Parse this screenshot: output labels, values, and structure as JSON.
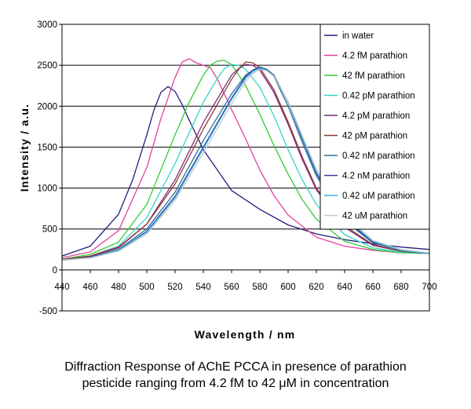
{
  "chart_data": {
    "type": "line",
    "title": "",
    "xlabel": "Wavelength / nm",
    "ylabel": "Intensity / a.u.",
    "xlim": [
      440,
      700
    ],
    "ylim": [
      -500,
      3000
    ],
    "xticks": [
      "440",
      "460",
      "480",
      "500",
      "520",
      "540",
      "560",
      "580",
      "600",
      "620",
      "640",
      "660",
      "680",
      "700"
    ],
    "yticks": [
      "-500",
      "0",
      "500",
      "1000",
      "1500",
      "2000",
      "2500",
      "3000"
    ],
    "grid": "horizontal",
    "legend_position": "top-right",
    "series": [
      {
        "name": "in water",
        "color": "#1f1f7a",
        "x": [
          440,
          460,
          480,
          490,
          500,
          505,
          510,
          515,
          520,
          525,
          530,
          540,
          560,
          580,
          600,
          620,
          640,
          660,
          680,
          700
        ],
        "y": [
          170,
          290,
          680,
          1100,
          1650,
          1950,
          2170,
          2240,
          2180,
          2020,
          1830,
          1470,
          970,
          740,
          550,
          440,
          370,
          320,
          280,
          250
        ]
      },
      {
        "name": "4.2 fM parathion",
        "color": "#e0429c",
        "x": [
          440,
          460,
          480,
          500,
          510,
          520,
          525,
          530,
          535,
          540,
          545,
          550,
          560,
          570,
          580,
          590,
          600,
          620,
          640,
          660,
          680,
          700
        ],
        "y": [
          150,
          220,
          480,
          1250,
          1850,
          2350,
          2540,
          2580,
          2530,
          2500,
          2470,
          2330,
          1960,
          1600,
          1220,
          910,
          670,
          400,
          290,
          240,
          210,
          200
        ]
      },
      {
        "name": "42 fM parathion",
        "color": "#33cc33",
        "x": [
          440,
          460,
          480,
          500,
          520,
          530,
          540,
          545,
          550,
          555,
          560,
          570,
          580,
          590,
          600,
          610,
          620,
          640,
          660,
          680,
          700
        ],
        "y": [
          130,
          190,
          340,
          800,
          1650,
          2050,
          2380,
          2500,
          2550,
          2560,
          2510,
          2250,
          1900,
          1520,
          1170,
          860,
          620,
          350,
          250,
          210,
          200
        ]
      },
      {
        "name": "0.42 pM parathion",
        "color": "#33d6c8",
        "x": [
          440,
          460,
          480,
          500,
          520,
          540,
          550,
          555,
          560,
          565,
          570,
          580,
          590,
          600,
          610,
          620,
          640,
          660,
          680,
          700
        ],
        "y": [
          120,
          170,
          290,
          640,
          1300,
          2050,
          2340,
          2460,
          2510,
          2500,
          2450,
          2230,
          1880,
          1470,
          1100,
          800,
          430,
          270,
          220,
          200
        ]
      },
      {
        "name": "4.2 pM parathion",
        "color": "#7a2a7a",
        "x": [
          440,
          460,
          480,
          500,
          520,
          540,
          560,
          565,
          570,
          575,
          580,
          590,
          600,
          610,
          620,
          640,
          660,
          680,
          700
        ],
        "y": [
          120,
          160,
          270,
          560,
          1100,
          1800,
          2380,
          2460,
          2510,
          2500,
          2440,
          2170,
          1780,
          1350,
          980,
          520,
          300,
          230,
          200
        ]
      },
      {
        "name": "42 pM parathion",
        "color": "#8a3a3a",
        "x": [
          440,
          460,
          480,
          500,
          520,
          540,
          560,
          565,
          570,
          575,
          580,
          590,
          600,
          610,
          620,
          640,
          660,
          680,
          700
        ],
        "y": [
          130,
          170,
          280,
          560,
          1050,
          1720,
          2330,
          2450,
          2540,
          2530,
          2470,
          2200,
          1810,
          1380,
          1000,
          540,
          310,
          230,
          200
        ]
      },
      {
        "name": "0.42 nM parathion",
        "color": "#2f6f9a",
        "x": [
          440,
          460,
          480,
          500,
          520,
          540,
          560,
          570,
          575,
          580,
          585,
          590,
          600,
          610,
          620,
          640,
          660,
          680,
          700
        ],
        "y": [
          120,
          150,
          250,
          500,
          950,
          1580,
          2150,
          2380,
          2440,
          2460,
          2440,
          2360,
          2000,
          1560,
          1150,
          600,
          330,
          240,
          200
        ]
      },
      {
        "name": "4.2 nM parathion",
        "color": "#3b3b9e",
        "x": [
          440,
          460,
          480,
          500,
          520,
          540,
          560,
          570,
          575,
          580,
          585,
          590,
          600,
          610,
          620,
          640,
          660,
          680,
          700
        ],
        "y": [
          120,
          150,
          240,
          470,
          900,
          1500,
          2100,
          2360,
          2440,
          2480,
          2450,
          2380,
          2050,
          1600,
          1180,
          620,
          340,
          240,
          200
        ]
      },
      {
        "name": "0.42 uM parathion",
        "color": "#35b4e8",
        "x": [
          440,
          460,
          480,
          500,
          520,
          540,
          560,
          570,
          575,
          580,
          585,
          590,
          600,
          610,
          620,
          640,
          660,
          680,
          700
        ],
        "y": [
          120,
          150,
          240,
          460,
          880,
          1480,
          2080,
          2340,
          2420,
          2470,
          2440,
          2370,
          2050,
          1620,
          1200,
          640,
          350,
          240,
          200
        ]
      },
      {
        "name": "42 uM parathion",
        "color": "#c8c8c8",
        "x": [
          440,
          460,
          480,
          500,
          520,
          540,
          560,
          570,
          575,
          580,
          585,
          590,
          600,
          610,
          620,
          640,
          660,
          680,
          700
        ],
        "y": [
          120,
          145,
          230,
          440,
          850,
          1430,
          2030,
          2300,
          2400,
          2450,
          2430,
          2360,
          2060,
          1640,
          1230,
          660,
          360,
          250,
          210
        ]
      }
    ]
  },
  "caption": {
    "line1": "Diffraction Response of AChE PCCA in presence of parathion",
    "line2": "pesticide ranging from 4.2 fM to 42 μM in concentration"
  }
}
